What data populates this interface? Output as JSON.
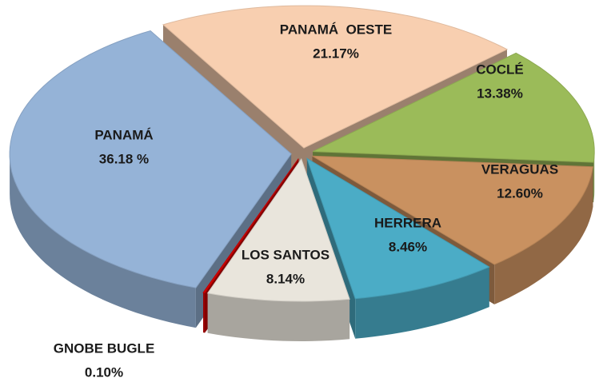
{
  "chart_data": {
    "type": "pie",
    "categories": [
      "PANAMÁ  OESTE",
      "COCLÉ",
      "VERAGUAS",
      "HERRERA",
      "LOS SANTOS",
      "GNOBE BUGLE",
      "PANAMÁ"
    ],
    "values": [
      21.17,
      13.38,
      12.6,
      8.46,
      8.14,
      0.1,
      36.18
    ],
    "value_labels": [
      "21.17%",
      "13.38%",
      "12.60%",
      "8.46%",
      "8.14%",
      "0.10%",
      "36.18 %"
    ],
    "colors": [
      "#f8cfb0",
      "#9bbb59",
      "#c99160",
      "#4bacc6",
      "#e9e5dc",
      "#d40000",
      "#95b3d7"
    ]
  }
}
